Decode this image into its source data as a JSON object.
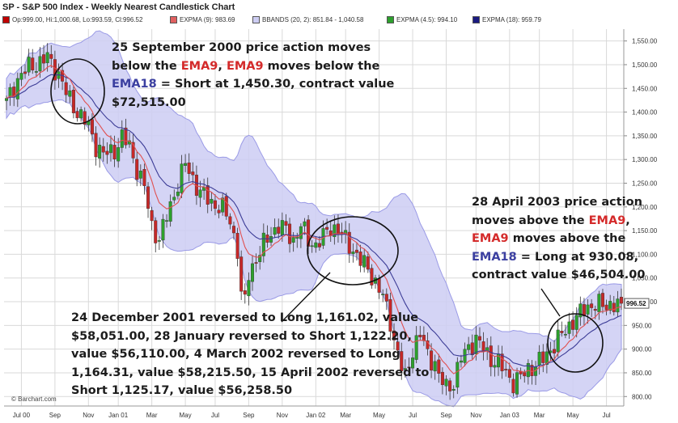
{
  "header": {
    "title": "SP - S&P 500 Index - Weekly Nearest Candlestick Chart"
  },
  "legend": [
    {
      "text": "Op:999.00, Hi:1,000.68, Lo:993.59, Cl:996.52",
      "color": "#c00000"
    },
    {
      "text": "EXPMA (9): 983.69",
      "color": "#e06060"
    },
    {
      "text": "BBANDS (20, 2): 851.84 - 1,040.58",
      "color": "#9a9ae6"
    },
    {
      "text": "EXPMA (4.5): 994.10",
      "color": "#2da02d"
    },
    {
      "text": "EXPMA (18): 959.79",
      "color": "#1a1a80"
    }
  ],
  "last_price_label": "996.52",
  "credit": "© Barchart.com",
  "annotations": {
    "a1": {
      "l1": "25 September 2000 price action moves",
      "l2a": "below the ",
      "l2b": "EMA9",
      "l2c": ", ",
      "l2d": "EMA9",
      "l2e": " moves below the",
      "l3a": "EMA18",
      "l3b": " = Short at 1,450.30, contract value",
      "l4": "$72,515.00"
    },
    "a2": {
      "l1": "24 December 2001 reversed to Long 1,161.02, value",
      "l2": "$58,051.00,  28 January reversed to Short 1,122.20,",
      "l3": "value $56,110.00, 4 March 2002 reversed to Long",
      "l4": "1,164.31, value $58,215.50, 15 April 2002 reversed to",
      "l5": "Short 1,125.17, value $56,258.50"
    },
    "a3": {
      "l1": "28 April 2003 price action",
      "l2a": "moves above the ",
      "l2b": "EMA9",
      "l2c": ",",
      "l3a": "EMA9",
      "l3b": " moves above the",
      "l4a": "EMA18",
      "l4b": " = Long at 930.08,",
      "l5": "contract value $46,504.00"
    }
  },
  "colors": {
    "up": "#2da02d",
    "down": "#c62828",
    "ema9": "#e05050",
    "ema18": "#3c3c96",
    "band_fill": "#cdcdf3",
    "band_line": "#9a9ae6",
    "grid": "#d9d9d9"
  },
  "chart_data": {
    "type": "candlestick",
    "title": "SP - S&P 500 Index - Weekly Nearest Candlestick Chart",
    "ylim": [
      780,
      1575
    ],
    "y_ticks": [
      800,
      850,
      900,
      950,
      1000,
      1050,
      1100,
      1150,
      1200,
      1250,
      1300,
      1350,
      1400,
      1450,
      1500,
      1550
    ],
    "y_tick_labels": [
      "800.00",
      "850.00",
      "900.00",
      "950.00",
      "1,000.00",
      "1,050.00",
      "1,100.00",
      "1,150.00",
      "1,200.00",
      "1,250.00",
      "1,300.00",
      "1,350.00",
      "1,400.00",
      "1,450.00",
      "1,500.00",
      "1,550.00"
    ],
    "x_tick_labels": [
      "Jul 00",
      "Sep",
      "Nov",
      "Jan 01",
      "Mar",
      "May",
      "Jul",
      "Sep",
      "Nov",
      "Jan 02",
      "Mar",
      "May",
      "Jul",
      "Sep",
      "Nov",
      "Jan 03",
      "Mar",
      "May",
      "Jul"
    ],
    "x_tick_week_index": [
      4,
      13,
      22,
      30,
      39,
      48,
      56,
      65,
      74,
      83,
      91,
      100,
      109,
      118,
      126,
      135,
      143,
      152,
      161
    ],
    "weeks": 166,
    "close_anchors": [
      [
        0,
        1420
      ],
      [
        3,
        1470
      ],
      [
        6,
        1495
      ],
      [
        9,
        1505
      ],
      [
        11,
        1515
      ],
      [
        14,
        1480
      ],
      [
        16,
        1440
      ],
      [
        19,
        1400
      ],
      [
        22,
        1370
      ],
      [
        24,
        1330
      ],
      [
        26,
        1310
      ],
      [
        29,
        1320
      ],
      [
        31,
        1345
      ],
      [
        33,
        1330
      ],
      [
        35,
        1280
      ],
      [
        37,
        1240
      ],
      [
        39,
        1160
      ],
      [
        41,
        1130
      ],
      [
        43,
        1180
      ],
      [
        46,
        1250
      ],
      [
        48,
        1290
      ],
      [
        50,
        1260
      ],
      [
        52,
        1230
      ],
      [
        55,
        1210
      ],
      [
        58,
        1195
      ],
      [
        60,
        1170
      ],
      [
        62,
        1110
      ],
      [
        63,
        1010
      ],
      [
        64,
        1000
      ],
      [
        65,
        1060
      ],
      [
        67,
        1090
      ],
      [
        69,
        1120
      ],
      [
        71,
        1145
      ],
      [
        73,
        1160
      ],
      [
        75,
        1150
      ],
      [
        77,
        1130
      ],
      [
        79,
        1160
      ],
      [
        81,
        1130
      ],
      [
        83,
        1120
      ],
      [
        85,
        1135
      ],
      [
        87,
        1160
      ],
      [
        89,
        1150
      ],
      [
        91,
        1130
      ],
      [
        93,
        1110
      ],
      [
        95,
        1085
      ],
      [
        97,
        1070
      ],
      [
        99,
        1040
      ],
      [
        101,
        1010
      ],
      [
        103,
        960
      ],
      [
        104,
        920
      ],
      [
        106,
        860
      ],
      [
        107,
        840
      ],
      [
        109,
        900
      ],
      [
        111,
        930
      ],
      [
        113,
        890
      ],
      [
        115,
        870
      ],
      [
        116,
        840
      ],
      [
        118,
        820
      ],
      [
        120,
        830
      ],
      [
        122,
        880
      ],
      [
        124,
        905
      ],
      [
        126,
        920
      ],
      [
        128,
        900
      ],
      [
        130,
        880
      ],
      [
        132,
        870
      ],
      [
        134,
        850
      ],
      [
        136,
        830
      ],
      [
        138,
        840
      ],
      [
        139,
        850
      ],
      [
        140,
        860
      ],
      [
        142,
        865
      ],
      [
        144,
        880
      ],
      [
        146,
        900
      ],
      [
        148,
        920
      ],
      [
        150,
        940
      ],
      [
        152,
        960
      ],
      [
        154,
        975
      ],
      [
        156,
        990
      ],
      [
        158,
        995
      ],
      [
        160,
        990
      ],
      [
        162,
        995
      ],
      [
        165,
        996.52
      ]
    ],
    "last_close": 996.52,
    "series_values": {
      "ema9": 983.69,
      "ema18": 959.79,
      "ema4_5": 994.1,
      "bband_low": 851.84,
      "bband_high": 1040.58
    },
    "ohlc_last": {
      "open": 999.0,
      "high": 1000.68,
      "low": 993.59,
      "close": 996.52
    },
    "legend_position": "top"
  }
}
